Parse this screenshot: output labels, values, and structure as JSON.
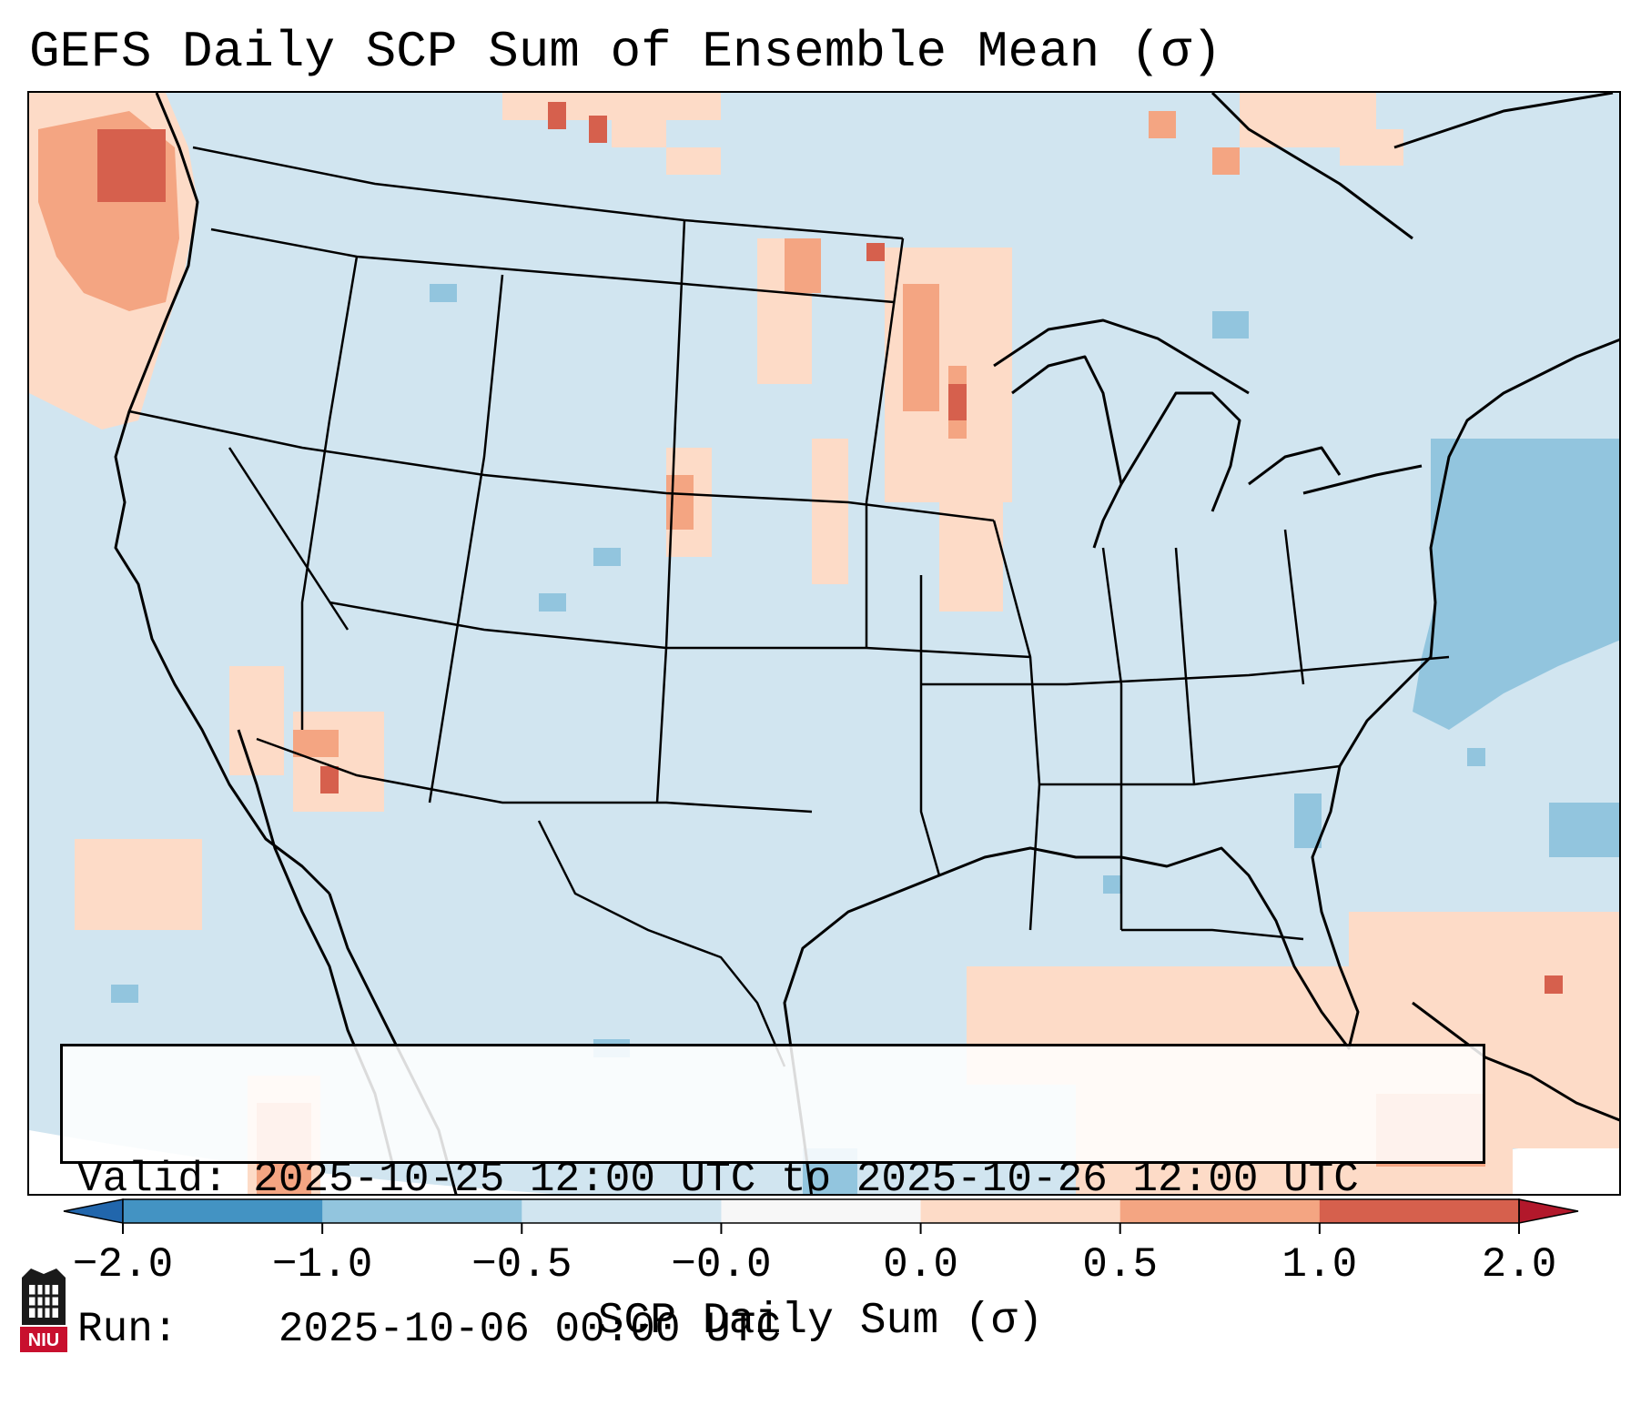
{
  "title": "GEFS Daily SCP Sum of Ensemble Mean (σ)",
  "info": {
    "valid_label": "Valid:",
    "valid_value": "2025-10-25 12:00 UTC to 2025-10-26 12:00 UTC",
    "run_label": "Run:",
    "run_value": "2025-10-06 00:00 UTC"
  },
  "colorbar": {
    "title": "SCP Daily Sum (σ)",
    "tick_labels": [
      "−2.0",
      "−1.0",
      "−0.5",
      "−0.0",
      "0.0",
      "0.5",
      "1.0",
      "2.0"
    ],
    "colors": [
      "#4393c3",
      "#92c5de",
      "#d1e5f0",
      "#f7f7f7",
      "#fddbc7",
      "#f4a582",
      "#d6604d"
    ],
    "extend_low_color": "#2166ac",
    "extend_high_color": "#b2182b"
  },
  "map": {
    "background_color": "#d1e5f0",
    "projection": "Lambert Conformal, CONUS"
  },
  "logo_text": "NIU"
}
